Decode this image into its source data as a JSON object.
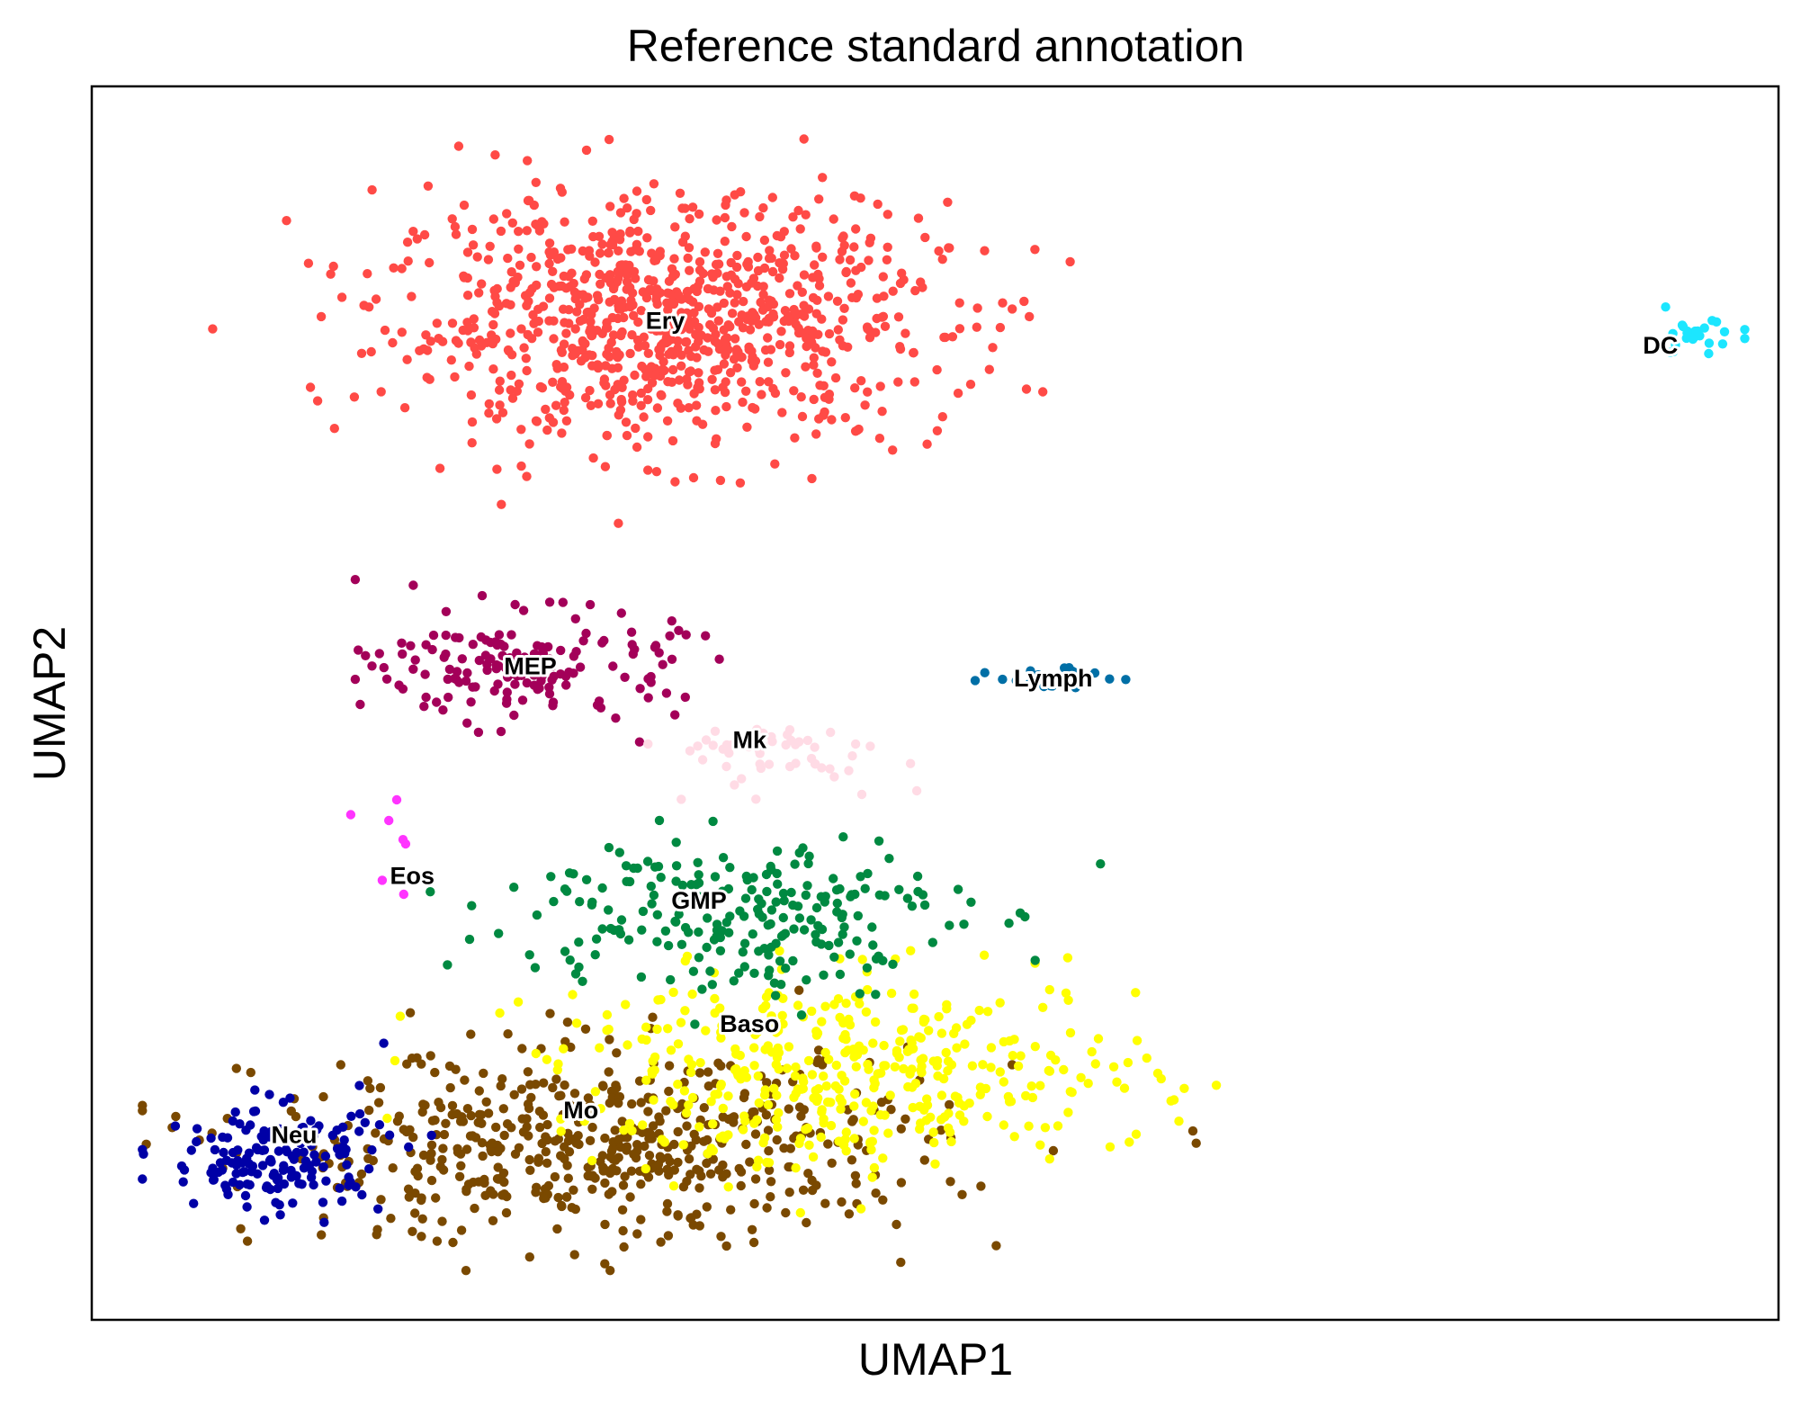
{
  "chart_data": {
    "type": "scatter",
    "title": "Reference standard annotation",
    "xlabel": "UMAP1",
    "ylabel": "UMAP2",
    "xlim": [
      0,
      100
    ],
    "ylim": [
      0,
      100
    ],
    "xticks": false,
    "yticks": false,
    "grid": false,
    "legend": "none (labels placed on data)",
    "clusters": [
      {
        "label": "Ery",
        "color": "#ff4a46",
        "count": 900,
        "center": [
          34,
          81
        ],
        "spread": [
          15,
          9
        ]
      },
      {
        "label": "MEP",
        "color": "#a30059",
        "count": 170,
        "center": [
          26,
          53
        ],
        "spread": [
          8,
          4
        ]
      },
      {
        "label": "Mk",
        "color": "#ffdbe5",
        "count": 55,
        "center": [
          40,
          46
        ],
        "spread": [
          7,
          2.5
        ]
      },
      {
        "label": "GMP",
        "color": "#008941",
        "count": 230,
        "center": [
          38,
          33
        ],
        "spread": [
          12,
          6
        ]
      },
      {
        "label": "Baso",
        "color": "#ffff00",
        "count": 420,
        "center": [
          45,
          20
        ],
        "spread": [
          16,
          7
        ]
      },
      {
        "label": "Mo",
        "color": "#7a4900",
        "count": 560,
        "center": [
          30,
          14
        ],
        "spread": [
          18,
          7
        ]
      },
      {
        "label": "Neu",
        "color": "#0000a6",
        "count": 160,
        "center": [
          11,
          13
        ],
        "spread": [
          6,
          4
        ]
      },
      {
        "label": "Eos",
        "color": "#ff34ff",
        "count": 8,
        "center": [
          18,
          38
        ],
        "spread": [
          2,
          4
        ]
      },
      {
        "label": "Lymph",
        "color": "#006fa6",
        "count": 30,
        "center": [
          57,
          52
        ],
        "spread": [
          3,
          0.8
        ]
      },
      {
        "label": "DC",
        "color": "#1ce6ff",
        "count": 24,
        "center": [
          95,
          80
        ],
        "spread": [
          3,
          1.5
        ]
      }
    ],
    "label_positions": [
      {
        "label": "Ery",
        "x": 34,
        "y": 81
      },
      {
        "label": "MEP",
        "x": 26,
        "y": 53
      },
      {
        "label": "Mk",
        "x": 39,
        "y": 47
      },
      {
        "label": "GMP",
        "x": 36,
        "y": 34
      },
      {
        "label": "Baso",
        "x": 39,
        "y": 24
      },
      {
        "label": "Mo",
        "x": 29,
        "y": 17
      },
      {
        "label": "Neu",
        "x": 12,
        "y": 15
      },
      {
        "label": "Eos",
        "x": 19,
        "y": 36
      },
      {
        "label": "Lymph",
        "x": 57,
        "y": 52
      },
      {
        "label": "DC",
        "x": 93,
        "y": 79
      }
    ]
  }
}
